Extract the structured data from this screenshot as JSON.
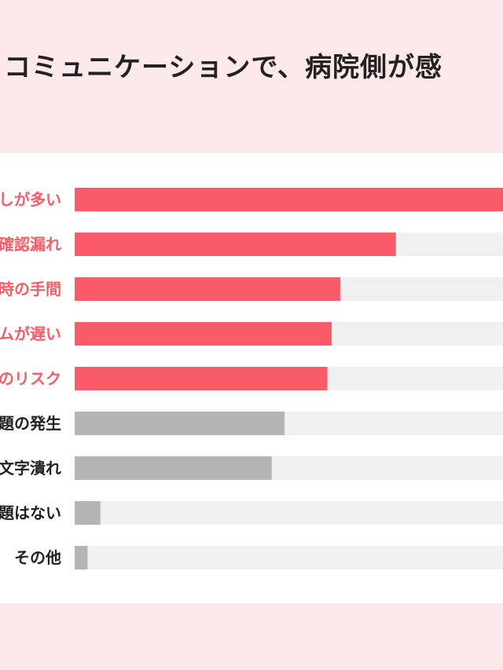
{
  "header": {
    "title": "るコミュニケーションで、病院側が感"
  },
  "colors": {
    "background": "#fde8ea",
    "panel": "#ffffff",
    "highlight": "#f95b68",
    "neutral": "#b4b4b4",
    "track": "#f0f0f0",
    "highlight_text": "#f95b68",
    "neutral_text": "#222222"
  },
  "chart_data": {
    "type": "bar",
    "orientation": "horizontal",
    "categories": [
      "しが多い",
      "確認漏れ",
      "時の手間",
      "ムが遅い",
      "のリスク",
      "題の発生",
      "文字潰れ",
      "題はない",
      "その他"
    ],
    "values": [
      100,
      75,
      62,
      60,
      59,
      49,
      46,
      6,
      3
    ],
    "highlighted": [
      true,
      true,
      true,
      true,
      true,
      false,
      false,
      false,
      false
    ],
    "xlim": [
      0,
      100
    ],
    "grid": false,
    "legend": "none"
  }
}
